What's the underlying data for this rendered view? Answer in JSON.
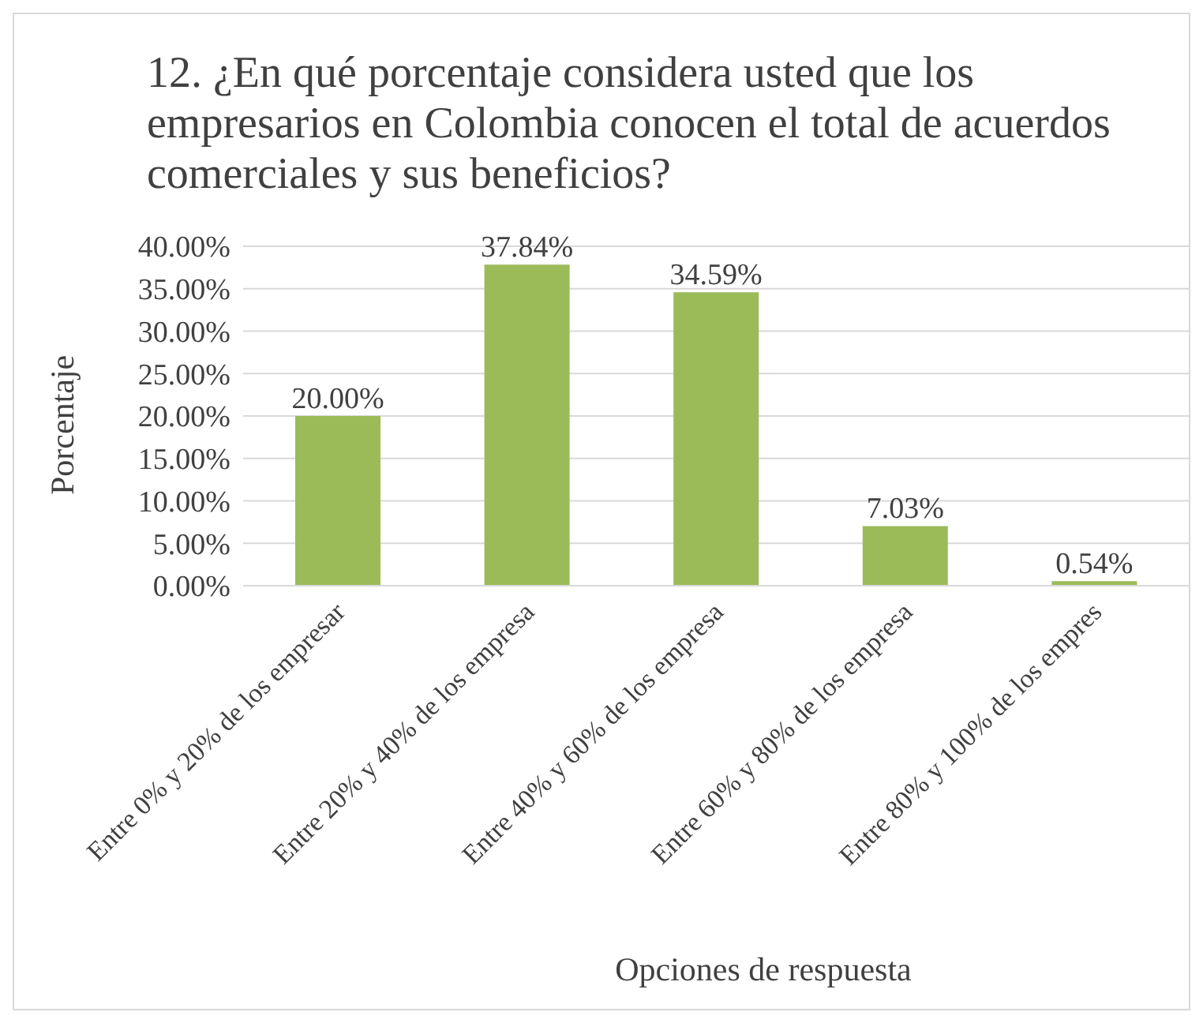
{
  "chart_data": {
    "type": "bar",
    "title": "12. ¿En qué porcentaje considera usted que los empresarios en Colombia conocen el total de acuerdos comerciales y sus beneficios?",
    "xlabel": "Opciones de respuesta",
    "ylabel": "Porcentaje",
    "categories": [
      "Entre 0% y 20% de los empresar",
      "Entre 20% y 40% de los empresa",
      "Entre 40% y 60% de los empresa",
      "Entre 60% y 80% de los empresa",
      "Entre 80% y 100% de los empres"
    ],
    "values": [
      20.0,
      37.84,
      34.59,
      7.03,
      0.54
    ],
    "value_labels": [
      "20.00%",
      "37.84%",
      "34.59%",
      "7.03%",
      "0.54%"
    ],
    "color": "#9bbb59",
    "ylim": [
      0,
      40
    ],
    "yticks": [
      {
        "value": 0,
        "label": "0.00%"
      },
      {
        "value": 5,
        "label": "5.00%"
      },
      {
        "value": 10,
        "label": "10.00%"
      },
      {
        "value": 15,
        "label": "15.00%"
      },
      {
        "value": 20,
        "label": "20.00%"
      },
      {
        "value": 25,
        "label": "25.00%"
      },
      {
        "value": 30,
        "label": "30.00%"
      },
      {
        "value": 35,
        "label": "35.00%"
      },
      {
        "value": 40,
        "label": "40.00%"
      }
    ],
    "grid": "y",
    "legend": false
  }
}
